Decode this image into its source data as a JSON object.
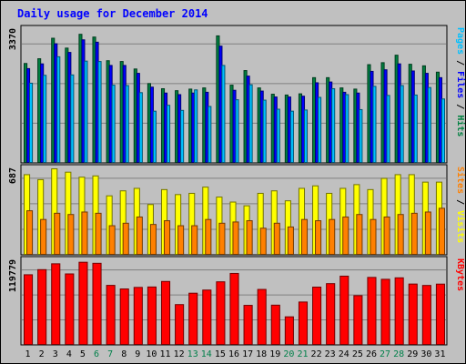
{
  "chart_data": {
    "type": "bar",
    "title": "Daily usage for December 2014",
    "categories": [
      "1",
      "2",
      "3",
      "4",
      "5",
      "6",
      "7",
      "8",
      "9",
      "10",
      "11",
      "12",
      "13",
      "14",
      "15",
      "16",
      "17",
      "18",
      "19",
      "20",
      "21",
      "22",
      "23",
      "24",
      "25",
      "26",
      "27",
      "28",
      "29",
      "30",
      "31"
    ],
    "weekend_days": [
      "6",
      "7",
      "13",
      "14",
      "20",
      "21",
      "27",
      "28"
    ],
    "panels": [
      {
        "name": "hits",
        "max_label": "3370",
        "max": 3370,
        "legend": [
          {
            "text": "Pages",
            "color": "#00c0ff"
          },
          {
            "text": " / ",
            "color": "#000000"
          },
          {
            "text": "Files",
            "color": "#0000ff"
          },
          {
            "text": " / ",
            "color": "#000000"
          },
          {
            "text": "Hits",
            "color": "#008040"
          }
        ],
        "series": [
          {
            "name": "Hits",
            "color": "#008040",
            "values": [
              2510,
              2630,
              3150,
              2900,
              3250,
              3180,
              2580,
              2560,
              2370,
              2000,
              1870,
              1820,
              1860,
              1890,
              3210,
              1960,
              2330,
              1890,
              1730,
              1710,
              1740,
              2150,
              2150,
              1890,
              1860,
              2480,
              2530,
              2720,
              2490,
              2450,
              2290
            ]
          },
          {
            "name": "Files",
            "color": "#0000ff",
            "values": [
              2380,
              2500,
              3010,
              2790,
              3110,
              3050,
              2460,
              2460,
              2260,
              1910,
              1760,
              1720,
              1760,
              1780,
              2950,
              1830,
              2190,
              1810,
              1660,
              1660,
              1680,
              2020,
              2040,
              1780,
              1760,
              2310,
              2350,
              2500,
              2320,
              2260,
              2150
            ]
          },
          {
            "name": "Pages",
            "color": "#00c0ff",
            "values": [
              2010,
              2210,
              2680,
              2220,
              2570,
              2560,
              1960,
              1950,
              1770,
              1300,
              1450,
              1320,
              1840,
              1420,
              2460,
              1590,
              1970,
              1580,
              1350,
              1300,
              1330,
              1650,
              1870,
              1720,
              1340,
              1930,
              1700,
              1950,
              1710,
              1900,
              1610
            ]
          }
        ]
      },
      {
        "name": "visits",
        "max_label": "687",
        "max": 687,
        "legend": [
          {
            "text": "Sites",
            "color": "#ff8000"
          },
          {
            "text": " / ",
            "color": "#000000"
          },
          {
            "text": "Visits",
            "color": "#ffff00"
          }
        ],
        "series": [
          {
            "name": "Visits",
            "color": "#ffff00",
            "values": [
              640,
              600,
              687,
              660,
              620,
              630,
              470,
              510,
              530,
              400,
              520,
              480,
              490,
              540,
              460,
              420,
              390,
              490,
              510,
              430,
              530,
              550,
              490,
              530,
              560,
              520,
              610,
              640,
              640,
              580,
              580
            ]
          },
          {
            "name": "Sites",
            "color": "#ff8000",
            "values": [
              350,
              280,
              330,
              320,
              340,
              330,
              230,
              250,
              300,
              240,
              270,
              230,
              230,
              280,
              250,
              260,
              270,
              210,
              250,
              220,
              280,
              270,
              280,
              300,
              320,
              280,
              300,
              320,
              330,
              340,
              370
            ]
          }
        ]
      },
      {
        "name": "kbytes",
        "max_label": "119779",
        "max": 119779,
        "legend": [
          {
            "text": "KBytes",
            "color": "#ff0000"
          }
        ],
        "series": [
          {
            "name": "KBytes",
            "color": "#ff0000",
            "values": [
              99700,
              107000,
              115400,
              100900,
              117600,
              116100,
              84500,
              79400,
              81600,
              82200,
              90100,
              57000,
              73300,
              77800,
              89600,
              101600,
              55900,
              78700,
              56200,
              39500,
              60700,
              82000,
              87000,
              97700,
              69800,
              95900,
              93200,
              95300,
              86400,
              84400,
              86300
            ]
          }
        ]
      }
    ]
  }
}
